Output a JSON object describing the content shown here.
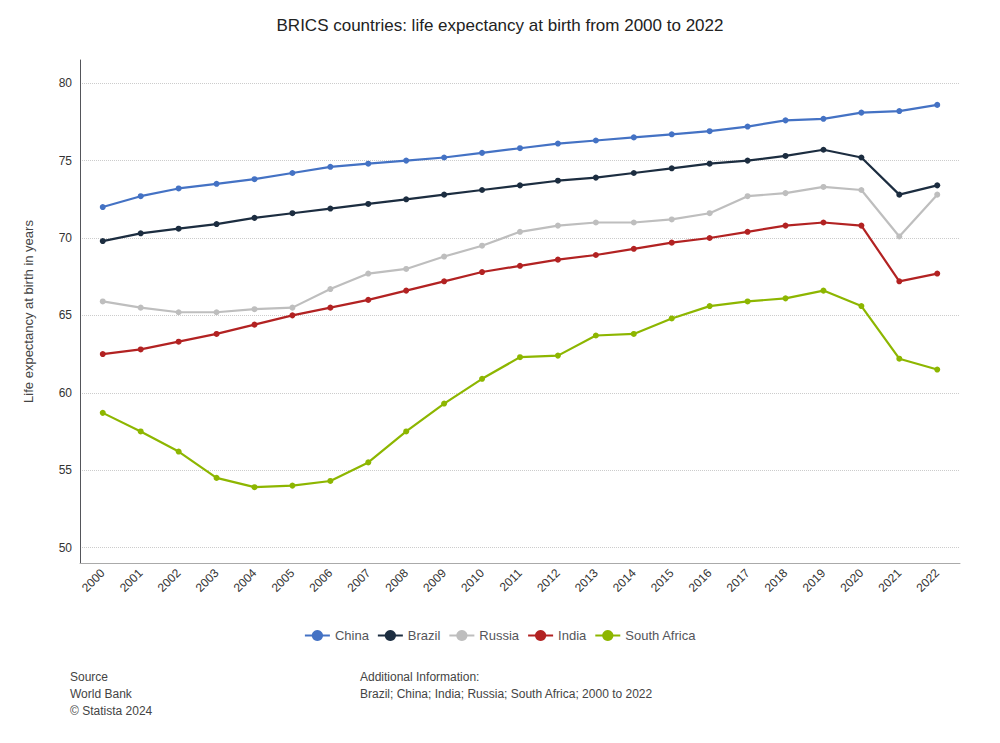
{
  "chart_data": {
    "type": "line",
    "title": "BRICS countries: life expectancy at birth from 2000 to 2022",
    "y_label": "Life expectancy at birth in years",
    "x": [
      2000,
      2001,
      2002,
      2003,
      2004,
      2005,
      2006,
      2007,
      2008,
      2009,
      2010,
      2011,
      2012,
      2013,
      2014,
      2015,
      2016,
      2017,
      2018,
      2019,
      2020,
      2021,
      2022
    ],
    "xlim": [
      1999.4,
      2022.6
    ],
    "xticks": [
      2000,
      2001,
      2002,
      2003,
      2004,
      2005,
      2006,
      2007,
      2008,
      2009,
      2010,
      2011,
      2012,
      2013,
      2014,
      2015,
      2016,
      2017,
      2018,
      2019,
      2020,
      2021,
      2022
    ],
    "ylim": [
      49.0,
      81.5
    ],
    "yticks": [
      50,
      55,
      60,
      65,
      70,
      75,
      80
    ],
    "grid": true,
    "legend": "bottom",
    "marker": "circle",
    "series": [
      {
        "name": "China",
        "color": "#4472C4",
        "values": [
          72.0,
          72.7,
          73.2,
          73.5,
          73.8,
          74.2,
          74.6,
          74.8,
          75.0,
          75.2,
          75.5,
          75.8,
          76.1,
          76.3,
          76.5,
          76.7,
          76.9,
          77.2,
          77.6,
          77.7,
          78.1,
          78.2,
          78.6
        ]
      },
      {
        "name": "Brazil",
        "color": "#1C2D40",
        "values": [
          69.8,
          70.3,
          70.6,
          70.9,
          71.3,
          71.6,
          71.9,
          72.2,
          72.5,
          72.8,
          73.1,
          73.4,
          73.7,
          73.9,
          74.2,
          74.5,
          74.8,
          75.0,
          75.3,
          75.7,
          75.2,
          72.8,
          73.4
        ]
      },
      {
        "name": "Russia",
        "color": "#BEBEBE",
        "values": [
          65.9,
          65.5,
          65.2,
          65.2,
          65.4,
          65.5,
          66.7,
          67.7,
          68.0,
          68.8,
          69.5,
          70.4,
          70.8,
          71.0,
          71.0,
          71.2,
          71.6,
          72.7,
          72.9,
          73.3,
          73.1,
          70.1,
          72.8
        ]
      },
      {
        "name": "India",
        "color": "#B22222",
        "values": [
          62.5,
          62.8,
          63.3,
          63.8,
          64.4,
          65.0,
          65.5,
          66.0,
          66.6,
          67.2,
          67.8,
          68.2,
          68.6,
          68.9,
          69.3,
          69.7,
          70.0,
          70.4,
          70.8,
          71.0,
          70.8,
          67.2,
          67.7
        ]
      },
      {
        "name": "South Africa",
        "color": "#8DB600",
        "values": [
          58.7,
          57.5,
          56.2,
          54.5,
          53.9,
          54.0,
          54.3,
          55.5,
          57.5,
          59.3,
          60.9,
          62.3,
          62.4,
          63.7,
          63.8,
          64.8,
          65.6,
          65.9,
          66.1,
          66.6,
          65.6,
          62.2,
          61.5
        ]
      }
    ],
    "annotations": [
      "Source\nWorld Bank\n© Statista 2024",
      "Additional Information:\nBrazil; China; India; Russia; South Africa; 2000 to 2022"
    ]
  }
}
